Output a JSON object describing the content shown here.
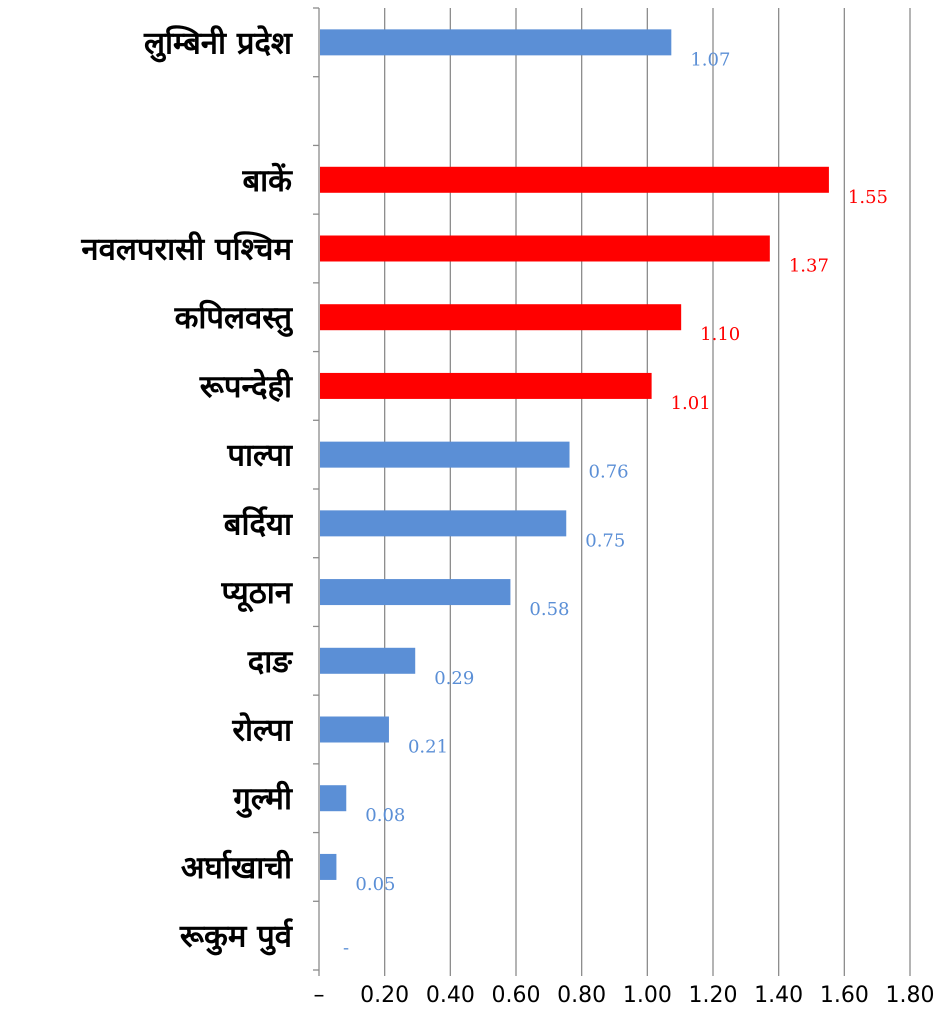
{
  "chart_data": {
    "type": "bar",
    "orientation": "horizontal",
    "title": "",
    "xlabel": "",
    "ylabel": "",
    "xlim": [
      0,
      1.8
    ],
    "grid": "vertical",
    "legend": "none",
    "x_tick_labels": [
      "–",
      "0.20",
      "0.40",
      "0.60",
      "0.80",
      "1.00",
      "1.20",
      "1.40",
      "1.60",
      "1.80"
    ],
    "colors": {
      "default": "#5b8fd6",
      "highlight": "#ff0000",
      "gridline": "#8c8c8c"
    },
    "categories": [
      {
        "label": "लुम्बिनी प्रदेश",
        "value": 1.07,
        "value_label": "1.07",
        "highlight": false
      },
      {
        "label": "",
        "value": null,
        "value_label": "",
        "highlight": false
      },
      {
        "label": "बाकें",
        "value": 1.55,
        "value_label": "1.55",
        "highlight": true
      },
      {
        "label": "नवलपरासी पश्चिम",
        "value": 1.37,
        "value_label": "1.37",
        "highlight": true
      },
      {
        "label": "कपिलवस्तु",
        "value": 1.1,
        "value_label": "1.10",
        "highlight": true
      },
      {
        "label": "रूपन्देही",
        "value": 1.01,
        "value_label": "1.01",
        "highlight": true
      },
      {
        "label": "पाल्पा",
        "value": 0.76,
        "value_label": "0.76",
        "highlight": false
      },
      {
        "label": "बर्दिया",
        "value": 0.75,
        "value_label": "0.75",
        "highlight": false
      },
      {
        "label": "प्यूठान",
        "value": 0.58,
        "value_label": "0.58",
        "highlight": false
      },
      {
        "label": "दाङ",
        "value": 0.29,
        "value_label": "0.29",
        "highlight": false
      },
      {
        "label": "रोल्पा",
        "value": 0.21,
        "value_label": "0.21",
        "highlight": false
      },
      {
        "label": "गुल्मी",
        "value": 0.08,
        "value_label": "0.08",
        "highlight": false
      },
      {
        "label": "अर्घाखाची",
        "value": 0.05,
        "value_label": "0.05",
        "highlight": false
      },
      {
        "label": "रूकुम पुर्व",
        "value": 0,
        "value_label": "-",
        "highlight": false
      }
    ]
  }
}
